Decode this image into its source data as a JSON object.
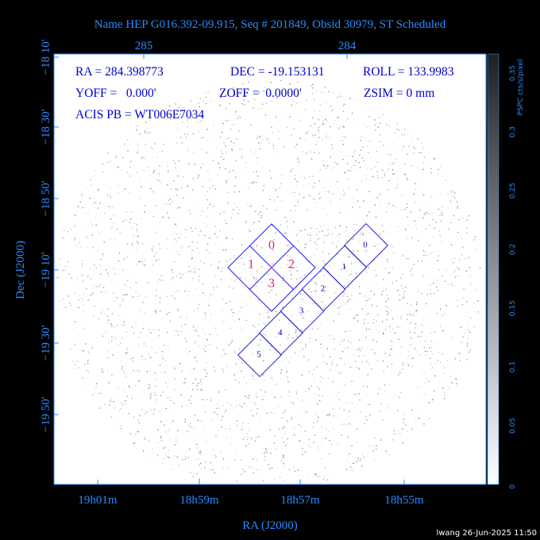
{
  "title": "Name HEP G016.392-09.915, Seq # 201849, Obsid 30979, ST Scheduled",
  "info": {
    "ra": "RA = 284.398773",
    "dec": "DEC = -19.153131",
    "roll": "ROLL = 133.9983",
    "yoff": "YOFF =   0.000'",
    "zoff": "ZOFF =  0.0000'",
    "zsim": "ZSIM = 0 mm",
    "acis_pb": "ACIS PB = WT006E7034"
  },
  "top_axis": {
    "labels": [
      "285",
      "284"
    ]
  },
  "left_axis": {
    "title": "Dec (J2000)",
    "labels": [
      "−18 10'",
      "−18 30'",
      "−18 50'",
      "−19 10'",
      "−19 30'",
      "−19 50'"
    ]
  },
  "bottom_axis": {
    "title": "RA (J2000)",
    "labels": [
      "19h01m",
      "18h59m",
      "18h57m",
      "18h55m"
    ]
  },
  "colorbar": {
    "title": "PSPC cts/s/pixel",
    "labels": [
      "0",
      "0.05",
      "0.1",
      "0.15",
      "0.2",
      "0.25",
      "0.3",
      "0.35"
    ]
  },
  "acis_i": {
    "labels": [
      "0",
      "1",
      "2",
      "3"
    ]
  },
  "acis_s": {
    "labels": [
      "0",
      "1",
      "2",
      "3",
      "4",
      "5"
    ]
  },
  "footer": "lwang 26-Jun-2025 11:50"
}
